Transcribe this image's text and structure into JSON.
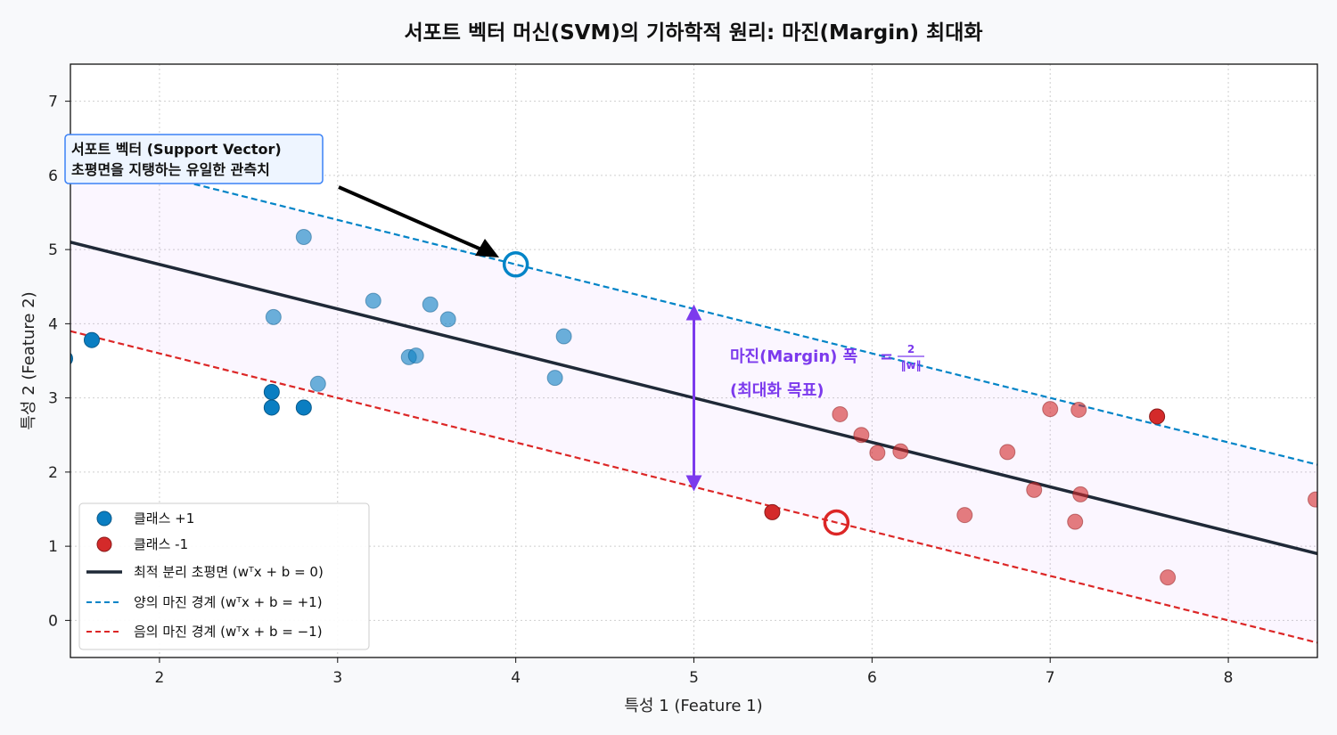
{
  "chart_data": {
    "type": "scatter",
    "title": "서포트 벡터 머신(SVM)의 기하학적 원리: 마진(Margin) 최대화",
    "xlabel": "특성 1 (Feature 1)",
    "ylabel": "특성 2 (Feature 2)",
    "xlim": [
      1.5,
      8.5
    ],
    "ylim": [
      -0.5,
      7.5
    ],
    "xticks": [
      2,
      3,
      4,
      5,
      6,
      7,
      8
    ],
    "yticks": [
      0,
      1,
      2,
      3,
      4,
      5,
      6,
      7
    ],
    "grid": true,
    "legend_position": "lower-left",
    "lines": {
      "hyperplane": {
        "slope": -0.6,
        "intercept": 6.0,
        "color": "#1f2937",
        "label": "최적 분리 초평면 ($w^Tx+b=0$)"
      },
      "margin_pos": {
        "slope": -0.6,
        "intercept": 7.2,
        "color": "#0284c7",
        "label": "양의 마진 경계 ($w^Tx+b=+1$)"
      },
      "margin_neg": {
        "slope": -0.6,
        "intercept": 4.8,
        "color": "#dc2626",
        "label": "음의 마진 경계 ($w^Tx+b=-1$)"
      }
    },
    "series": [
      {
        "name": "클래스 +1",
        "color": "#0a7ec2",
        "points_solid": [
          [
            1.62,
            3.78
          ],
          [
            2.63,
            3.08
          ],
          [
            2.63,
            2.87
          ],
          [
            2.81,
            2.87
          ],
          [
            1.47,
            3.53
          ]
        ],
        "points_faded": [
          [
            2.81,
            5.17
          ],
          [
            2.64,
            4.09
          ],
          [
            3.2,
            4.31
          ],
          [
            3.52,
            4.26
          ],
          [
            3.62,
            4.06
          ],
          [
            3.4,
            3.55
          ],
          [
            3.44,
            3.57
          ],
          [
            2.89,
            3.19
          ],
          [
            4.27,
            3.83
          ],
          [
            4.22,
            3.27
          ]
        ]
      },
      {
        "name": "클래스 -1",
        "color": "#d42a2a",
        "points_solid": [
          [
            5.44,
            1.46
          ],
          [
            7.6,
            2.75
          ]
        ],
        "points_faded": [
          [
            5.82,
            2.78
          ],
          [
            5.94,
            2.5
          ],
          [
            6.03,
            2.26
          ],
          [
            6.16,
            2.28
          ],
          [
            6.52,
            1.42
          ],
          [
            6.76,
            2.27
          ],
          [
            6.91,
            1.76
          ],
          [
            7.0,
            2.85
          ],
          [
            7.16,
            2.84
          ],
          [
            7.17,
            1.7
          ],
          [
            7.14,
            1.33
          ],
          [
            7.66,
            0.58
          ],
          [
            8.49,
            1.63
          ]
        ]
      }
    ],
    "support_vectors": [
      {
        "x": 4.0,
        "y": 4.8,
        "color": "#0284c7"
      },
      {
        "x": 5.8,
        "y": 1.32,
        "color": "#dc2626"
      }
    ],
    "margin_arrow": {
      "x": 5.0,
      "y_from": 1.8,
      "y_to": 4.2,
      "color": "#7c3aed"
    },
    "annotations": {
      "support_vector_line1": "서포트 벡터 (Support Vector)",
      "support_vector_line2": "초평면을 지탱하는 유일한 관측치",
      "margin_label": "마진(Margin) 폭",
      "margin_eq": "=",
      "margin_frac_num": "2",
      "margin_frac_den": "‖w‖",
      "margin_goal": "(최대화 목표)"
    },
    "legend": [
      {
        "label": "클래스 +1",
        "kind": "dot",
        "color": "#0a7ec2"
      },
      {
        "label": "클래스 -1",
        "kind": "dot",
        "color": "#d42a2a"
      },
      {
        "label": "최적 분리 초평면 (wᵀx + b = 0)",
        "kind": "solid",
        "color": "#1f2937"
      },
      {
        "label": "양의 마진 경계 (wᵀx + b = +1)",
        "kind": "dash",
        "color": "#0284c7"
      },
      {
        "label": "음의 마진 경계 (wᵀx + b = −1)",
        "kind": "dash",
        "color": "#dc2626"
      }
    ]
  }
}
